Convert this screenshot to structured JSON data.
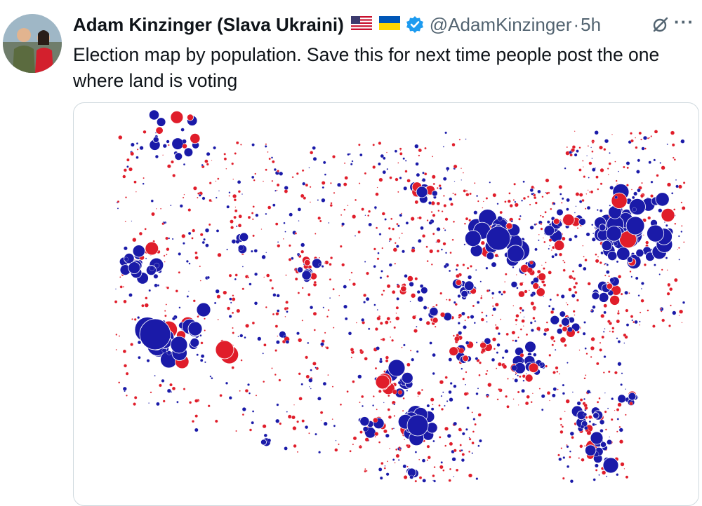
{
  "author": {
    "display_name": "Adam Kinzinger (Slava Ukraini)",
    "handle": "@AdamKinzinger",
    "separator": "·",
    "timestamp": "5h",
    "verified": true,
    "flags": [
      "us-flag-icon",
      "ukraine-flag-icon"
    ]
  },
  "tweet": {
    "line1": "Election map by population.  Save this for next time people post the one",
    "line2": "where land is voting"
  },
  "actions": {
    "more_label": "···",
    "grok_icon": "grok-icon"
  },
  "colors": {
    "blue": "#1a1aa8",
    "red": "#e01d2a",
    "verified": "#1d9bf0",
    "secondary_text": "#536471"
  }
}
